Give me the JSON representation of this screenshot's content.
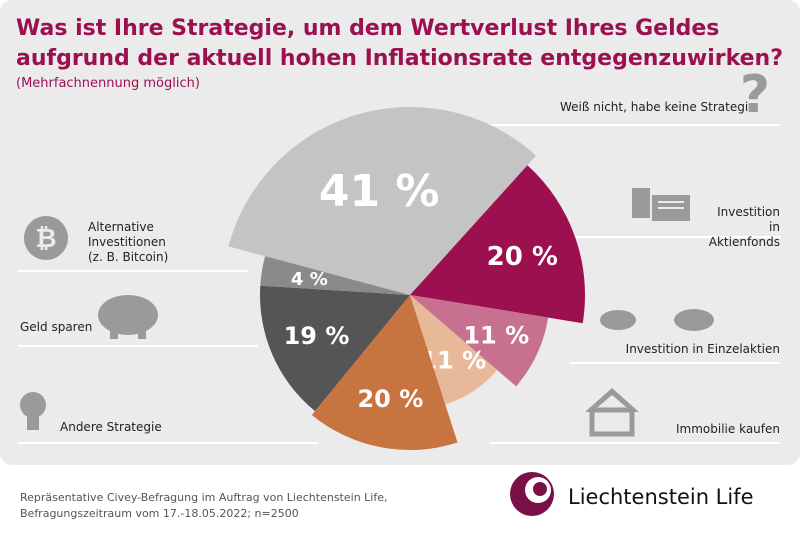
{
  "title": "Was ist Ihre Strategie, um dem Wertverlust Ihres Geldes aufgrund der aktuell hohen Inflationsrate entgegenzuwirken?",
  "subtitle": "(Mehrfachnennung möglich)",
  "source_line1": "Repräsentative Civey-Befragung im Auftrag von Liechtenstein Life,",
  "source_line2": "Befragungszeitraum vom 17.-18.05.2022; n=2500",
  "brand": "Liechtenstein Life",
  "chart_data": {
    "type": "pie",
    "title": "Was ist Ihre Strategie, um dem Wertverlust Ihres Geldes aufgrund der aktuell hohen Inflationsrate entgegenzuwirken?",
    "unit": "%",
    "slices": [
      {
        "name": "Weiß nicht, habe keine Strategie",
        "value": 41,
        "label": "41 %",
        "color": "#c4c4c4",
        "icon": "question-mark-icon"
      },
      {
        "name": "Investition in Aktienfonds",
        "value": 20,
        "label": "20 %",
        "color": "#9c1050",
        "icon": "documents-icon"
      },
      {
        "name": "Investition in Einzelaktien",
        "value": 11,
        "label": "11 %",
        "color": "#c8708f",
        "icon": "bull-bear-icon"
      },
      {
        "name": "Immobilie kaufen",
        "value": 11,
        "label": "11 %",
        "color": "#e8b999",
        "icon": "house-icon"
      },
      {
        "name": "Andere Strategie",
        "value": 20,
        "label": "20 %",
        "color": "#c87440",
        "icon": "lightbulb-icon"
      },
      {
        "name": "Geld sparen",
        "value": 19,
        "label": "19 %",
        "color": "#555555",
        "icon": "piggy-bank-icon"
      },
      {
        "name": "Alternative Investitionen (z. B. Bitcoin)",
        "value": 4,
        "label": "4 %",
        "color": "#8a8a8a",
        "icon": "bitcoin-icon"
      }
    ]
  },
  "labels": {
    "unknown": "Weiß nicht, habe keine Strategie",
    "funds": [
      "Investition",
      "in Aktienfonds"
    ],
    "stocks": "Investition in Einzelaktien",
    "property": "Immobilie kaufen",
    "other": "Andere Strategie",
    "saving": "Geld sparen",
    "crypto": [
      "Alternative",
      "Investitionen",
      "(z. B. Bitcoin)"
    ]
  }
}
